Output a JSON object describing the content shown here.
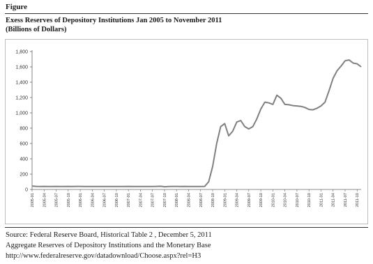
{
  "figure": {
    "label": "Figure",
    "title_line1": "Exess Reserves of Depository Institutions Jan 2005 to November 2011",
    "title_line2": "(Billions of Dollars)"
  },
  "source": {
    "line1": "Source: Federal Reserve Board, Historical Table 2 , December 5, 2011",
    "line2": "Aggregate Reserves of Depository Institutions and the Monetary Base",
    "line3": "http://www.federalreserve.gov/datadownload/Choose.aspx?rel=H3"
  },
  "chart_data": {
    "type": "line",
    "title": "Exess Reserves of Depository Institutions Jan 2005 to November 2011",
    "ylabel": "(Billions of Dollars)",
    "ylim": [
      0,
      1800
    ],
    "yticks": [
      0,
      200,
      400,
      600,
      800,
      1000,
      1200,
      1400,
      1600,
      1800
    ],
    "ytick_labels": [
      "0",
      "200",
      "400",
      "600",
      "800",
      "1,000",
      "1,200",
      "1,400",
      "1,600",
      "1,800"
    ],
    "xtick_labels": [
      "2005-01",
      "2005-04",
      "2005-07",
      "2005-10",
      "2006-01",
      "2006-04",
      "2006-07",
      "2006-10",
      "2007-01",
      "2007-04",
      "2007-07",
      "2007-10",
      "2008-01",
      "2008-04",
      "2008-07",
      "2008-10",
      "2009-01",
      "2009-04",
      "2009-07",
      "2009-10",
      "2010-01",
      "2010-04",
      "2010-07",
      "2010-10",
      "2011-01",
      "2011-04",
      "2011-07",
      "2011-10"
    ],
    "line_color": "#7f7f7f",
    "grid": false,
    "x": [
      "2005-01",
      "2005-02",
      "2005-03",
      "2005-04",
      "2005-05",
      "2005-06",
      "2005-07",
      "2005-08",
      "2005-09",
      "2005-10",
      "2005-11",
      "2005-12",
      "2006-01",
      "2006-02",
      "2006-03",
      "2006-04",
      "2006-05",
      "2006-06",
      "2006-07",
      "2006-08",
      "2006-09",
      "2006-10",
      "2006-11",
      "2006-12",
      "2007-01",
      "2007-02",
      "2007-03",
      "2007-04",
      "2007-05",
      "2007-06",
      "2007-07",
      "2007-08",
      "2007-09",
      "2007-10",
      "2007-11",
      "2007-12",
      "2008-01",
      "2008-02",
      "2008-03",
      "2008-04",
      "2008-05",
      "2008-06",
      "2008-07",
      "2008-08",
      "2008-09",
      "2008-10",
      "2008-11",
      "2008-12",
      "2009-01",
      "2009-02",
      "2009-03",
      "2009-04",
      "2009-05",
      "2009-06",
      "2009-07",
      "2009-08",
      "2009-09",
      "2009-10",
      "2009-11",
      "2009-12",
      "2010-01",
      "2010-02",
      "2010-03",
      "2010-04",
      "2010-05",
      "2010-06",
      "2010-07",
      "2010-08",
      "2010-09",
      "2010-10",
      "2010-11",
      "2010-12",
      "2011-01",
      "2011-02",
      "2011-03",
      "2011-04",
      "2011-05",
      "2011-06",
      "2011-07",
      "2011-08",
      "2011-09",
      "2011-10",
      "2011-11"
    ],
    "values": [
      45,
      40,
      38,
      40,
      39,
      38,
      40,
      38,
      39,
      40,
      39,
      40,
      40,
      38,
      38,
      39,
      39,
      38,
      38,
      38,
      39,
      38,
      38,
      38,
      40,
      38,
      38,
      39,
      39,
      38,
      38,
      40,
      42,
      35,
      38,
      40,
      40,
      38,
      40,
      39,
      39,
      38,
      39,
      40,
      100,
      300,
      600,
      820,
      860,
      700,
      760,
      880,
      900,
      820,
      790,
      820,
      920,
      1050,
      1140,
      1130,
      1110,
      1230,
      1190,
      1110,
      1105,
      1095,
      1090,
      1085,
      1070,
      1045,
      1040,
      1060,
      1090,
      1140,
      1290,
      1450,
      1550,
      1610,
      1680,
      1690,
      1650,
      1640,
      1600
    ]
  }
}
